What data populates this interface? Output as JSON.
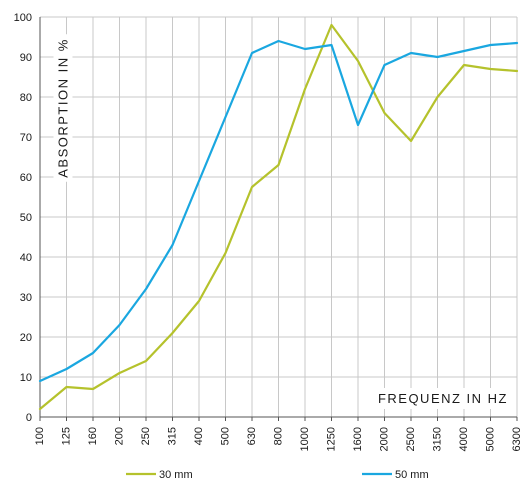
{
  "chart_data": {
    "type": "line",
    "title": "",
    "xlabel": "FREQUENZ IN HZ",
    "ylabel": "ABSORPTION IN %",
    "categories": [
      "100",
      "125",
      "160",
      "200",
      "250",
      "315",
      "400",
      "500",
      "630",
      "800",
      "1000",
      "1250",
      "1600",
      "2000",
      "2500",
      "3150",
      "4000",
      "5000",
      "6300"
    ],
    "ylim": [
      0,
      100
    ],
    "yticks": [
      0,
      10,
      20,
      30,
      40,
      50,
      60,
      70,
      80,
      90,
      100
    ],
    "grid": true,
    "legend_position": "bottom",
    "series": [
      {
        "name": "30 mm",
        "color": "#b5c22c",
        "values": [
          2,
          7.5,
          7,
          11,
          14,
          21,
          29,
          41,
          57.5,
          63,
          82,
          98,
          89,
          76,
          69,
          80,
          88,
          87,
          86.5
        ]
      },
      {
        "name": "50 mm",
        "color": "#1aa7e0",
        "values": [
          9,
          12,
          16,
          23,
          32,
          43,
          59,
          75,
          91,
          94,
          92,
          93,
          73,
          88,
          91,
          90,
          91.5,
          93,
          93.5
        ]
      }
    ]
  }
}
